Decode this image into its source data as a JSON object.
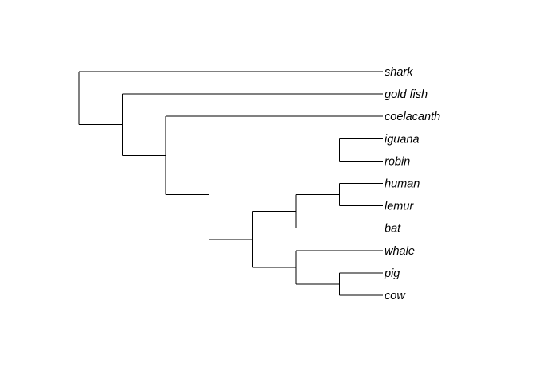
{
  "tree": {
    "layout": "rectangular-cladogram",
    "orientation": "rightwards",
    "root": {
      "children": [
        {
          "label": "shark"
        },
        {
          "children": [
            {
              "label": "gold fish"
            },
            {
              "children": [
                {
                  "label": "coelacanth"
                },
                {
                  "children": [
                    {
                      "children": [
                        {
                          "label": "iguana"
                        },
                        {
                          "label": "robin"
                        }
                      ]
                    },
                    {
                      "children": [
                        {
                          "children": [
                            {
                              "children": [
                                {
                                  "label": "human"
                                },
                                {
                                  "label": "lemur"
                                }
                              ]
                            },
                            {
                              "label": "bat"
                            }
                          ]
                        },
                        {
                          "children": [
                            {
                              "label": "whale"
                            },
                            {
                              "children": [
                                {
                                  "label": "pig"
                                },
                                {
                                  "label": "cow"
                                }
                              ]
                            }
                          ]
                        }
                      ]
                    }
                  ]
                }
              ]
            }
          ]
        }
      ]
    }
  }
}
